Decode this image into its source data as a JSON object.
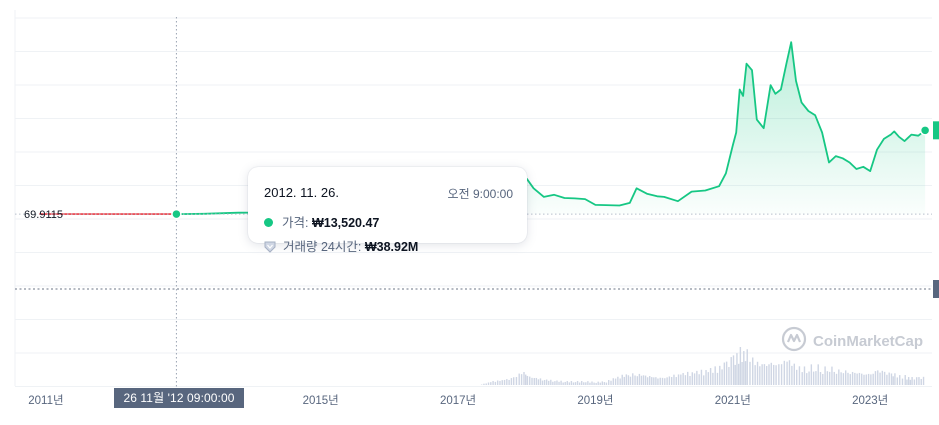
{
  "chart_data": {
    "type": "line",
    "currency_note": "price in KRW",
    "x": [
      2011.0,
      2011.5,
      2012.0,
      2012.5,
      2012.9,
      2013.3,
      2013.8,
      2014.2,
      2014.6,
      2015.0,
      2015.5,
      2016.0,
      2016.5,
      2016.9,
      2017.1,
      2017.3,
      2017.5,
      2017.7,
      2017.8,
      2017.88,
      2017.95,
      2018.0,
      2018.1,
      2018.25,
      2018.4,
      2018.55,
      2018.7,
      2018.85,
      2019.0,
      2019.15,
      2019.35,
      2019.5,
      2019.6,
      2019.75,
      2019.9,
      2020.0,
      2020.2,
      2020.4,
      2020.6,
      2020.8,
      2020.9,
      2021.0,
      2021.05,
      2021.1,
      2021.15,
      2021.2,
      2021.28,
      2021.35,
      2021.45,
      2021.55,
      2021.62,
      2021.7,
      2021.78,
      2021.85,
      2021.92,
      2022.0,
      2022.1,
      2022.2,
      2022.3,
      2022.4,
      2022.5,
      2022.6,
      2022.7,
      2022.8,
      2022.9,
      2023.0,
      2023.1,
      2023.2,
      2023.3,
      2023.35,
      2023.42,
      2023.5,
      2023.55,
      2023.6,
      2023.7,
      2023.8
    ],
    "y": [
      13520.47,
      13520.47,
      13520.47,
      13520.47,
      13520.47,
      140000,
      640000,
      700000,
      460000,
      350000,
      330000,
      460000,
      800000,
      820000,
      1100000,
      2400000,
      3200000,
      4700000,
      6900000,
      9500000,
      17000000,
      16500000,
      12000000,
      8000000,
      9000000,
      7500000,
      7300000,
      7000000,
      4300000,
      4200000,
      4000000,
      5200000,
      12000000,
      9500000,
      8300000,
      8000000,
      6000000,
      10500000,
      11000000,
      13000000,
      19000000,
      32000000,
      38000000,
      58000000,
      55000000,
      70000000,
      67000000,
      44000000,
      40000000,
      60000000,
      56000000,
      58000000,
      70000000,
      80000000,
      62000000,
      52000000,
      48000000,
      46000000,
      38000000,
      24000000,
      27000000,
      26000000,
      24000000,
      21000000,
      22000000,
      20000000,
      30000000,
      35000000,
      37000000,
      38500000,
      36000000,
      34000000,
      35500000,
      37000000,
      36500000,
      39000000
    ],
    "volume": [
      0,
      0,
      0,
      0,
      0,
      0,
      0,
      0,
      0,
      0,
      0,
      0,
      0,
      0,
      0,
      0,
      0.1,
      0.15,
      0.2,
      0.3,
      0.35,
      0.25,
      0.2,
      0.15,
      0.12,
      0.1,
      0.1,
      0.1,
      0.08,
      0.1,
      0.25,
      0.3,
      0.3,
      0.25,
      0.2,
      0.2,
      0.3,
      0.35,
      0.4,
      0.5,
      0.6,
      0.75,
      0.8,
      0.95,
      0.85,
      0.9,
      0.7,
      0.6,
      0.55,
      0.6,
      0.55,
      0.6,
      0.7,
      0.6,
      0.5,
      0.45,
      0.5,
      0.55,
      0.45,
      0.5,
      0.4,
      0.4,
      0.35,
      0.35,
      0.3,
      0.3,
      0.4,
      0.35,
      0.3,
      0.3,
      0.25,
      0.25,
      0.2,
      0.2,
      0.2,
      0.22
    ],
    "xlim": [
      2010.55,
      2023.9
    ],
    "ylim": [
      -80000000,
      95000000
    ],
    "y_scale": "linear",
    "x_tick_labels": [
      "2011년",
      "2015년",
      "2017년",
      "2019년",
      "2021년",
      "2023년"
    ],
    "x_tick_values": [
      2011.0,
      2015.0,
      2017.0,
      2019.0,
      2021.0,
      2023.0
    ],
    "reference_line": {
      "label": "69.9115",
      "value": 13520.47
    },
    "grid": "horizontal",
    "colors": {
      "price_line": "#16c784",
      "pre_data_line": "#ea3943",
      "volume": "#cfd6e4",
      "grid": "#eff2f5",
      "crosshair": "#9aa3b2"
    },
    "hover": {
      "x": 2012.9,
      "y": 13520.47
    }
  },
  "tooltip": {
    "date": "2012. 11. 26.",
    "time": "오전 9:00:00",
    "price_label": "가격:",
    "price_value": "₩13,520.47",
    "volume_label": "거래량 24시간:",
    "volume_value": "₩38.92M"
  },
  "crosshair_badge": "26 11월 '12   09:00:00",
  "watermark": "CoinMarketCap"
}
